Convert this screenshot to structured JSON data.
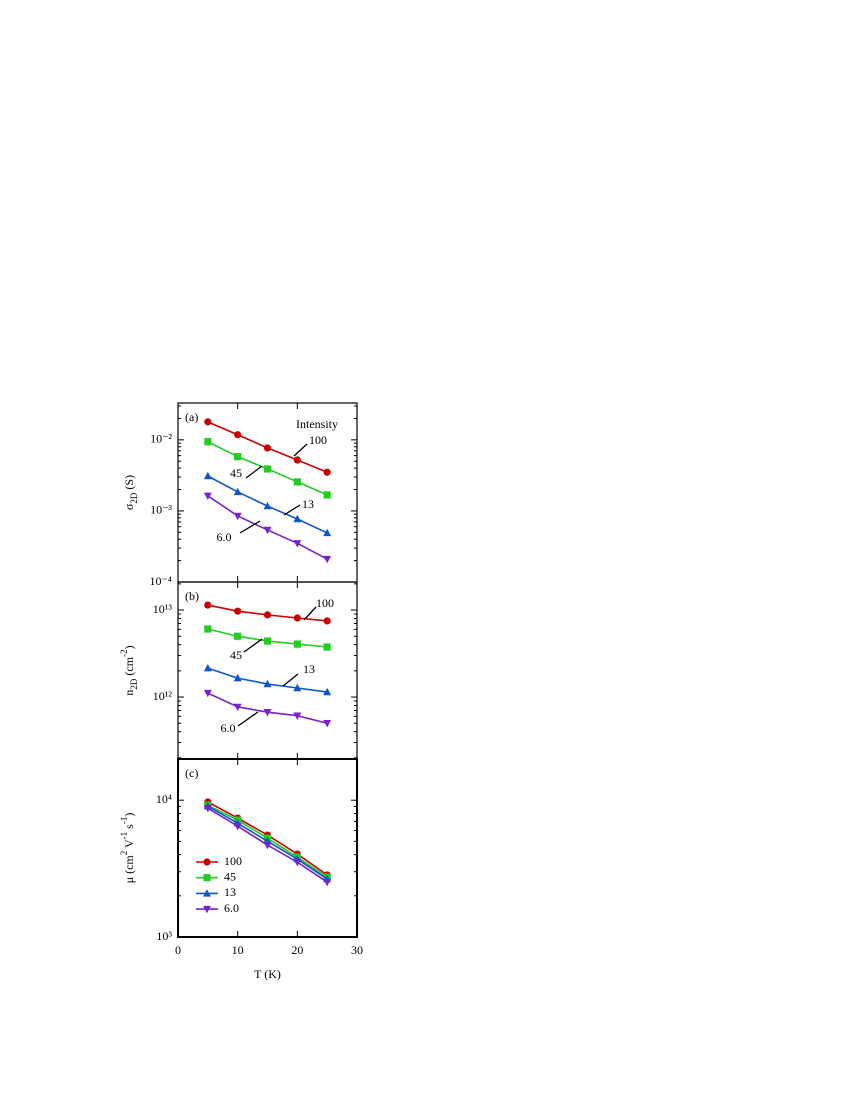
{
  "chart_data": [
    {
      "type": "line",
      "panel_label": "(a)",
      "ylabel": [
        {
          "text": "σ"
        },
        {
          "text": "2D",
          "sub": true
        },
        {
          "text": " (S)"
        }
      ],
      "log_y": true,
      "xlim": [
        0,
        30
      ],
      "xticks": [
        0,
        10,
        20,
        30
      ],
      "xtick_labels": false,
      "ylim": [
        0.0001,
        0.033
      ],
      "yticks": [
        {
          "value": 0.0001,
          "label": "10⁻⁴"
        },
        {
          "value": 0.001,
          "label": "10⁻³"
        },
        {
          "value": 0.01,
          "label": "10⁻²"
        }
      ],
      "annotations": [
        "Intensity"
      ],
      "series_labels": true,
      "x": [
        5,
        10,
        15,
        20,
        25
      ],
      "series": [
        {
          "name": "100",
          "color": "#cc0000",
          "marker": "circle",
          "values": [
            0.0179,
            0.0118,
            0.0077,
            0.0052,
            0.0035
          ]
        },
        {
          "name": "45",
          "color": "#22cc22",
          "marker": "square",
          "values": [
            0.0094,
            0.0058,
            0.0039,
            0.00256,
            0.00168
          ]
        },
        {
          "name": "13",
          "color": "#1155cc",
          "marker": "triangle-up",
          "values": [
            0.0031,
            0.00185,
            0.00117,
            0.00077,
            0.00049
          ]
        },
        {
          "name": "6.0",
          "color": "#7722cc",
          "marker": "triangle-down",
          "values": [
            0.00163,
            0.00085,
            0.00054,
            0.00035,
            0.00021
          ]
        }
      ]
    },
    {
      "type": "line",
      "panel_label": "(b)",
      "ylabel": [
        {
          "text": "n"
        },
        {
          "text": "2D",
          "sub": true
        },
        {
          "text": " (cm"
        },
        {
          "text": "-2",
          "sup": true
        },
        {
          "text": ")"
        }
      ],
      "log_y": true,
      "xlim": [
        0,
        30
      ],
      "xticks": [
        0,
        10,
        20,
        30
      ],
      "xtick_labels": false,
      "ylim": [
        194000000000,
        21000000000000
      ],
      "yticks": [
        {
          "value": 1000000000000,
          "label": "10¹²"
        },
        {
          "value": 10000000000000,
          "label": "10¹³"
        }
      ],
      "series_labels": true,
      "x": [
        5,
        10,
        15,
        20,
        25
      ],
      "series": [
        {
          "name": "100",
          "color": "#cc0000",
          "marker": "circle",
          "values": [
            11400000000000,
            9700000000000,
            8800000000000,
            8100000000000,
            7500000000000
          ]
        },
        {
          "name": "45",
          "color": "#22cc22",
          "marker": "square",
          "values": [
            6050000000000,
            5000000000000,
            4400000000000,
            4060000000000,
            3760000000000
          ]
        },
        {
          "name": "13",
          "color": "#1155cc",
          "marker": "triangle-up",
          "values": [
            2150000000000,
            1650000000000,
            1410000000000,
            1270000000000,
            1140000000000
          ]
        },
        {
          "name": "6.0",
          "color": "#7722cc",
          "marker": "triangle-down",
          "values": [
            1110000000000,
            770000000000,
            670000000000,
            610000000000,
            500000000000
          ]
        }
      ]
    },
    {
      "type": "line",
      "panel_label": "(c)",
      "ylabel": [
        {
          "text": "μ (cm"
        },
        {
          "text": "2",
          "sup": true
        },
        {
          "text": " V"
        },
        {
          "text": "-1",
          "sup": true
        },
        {
          "text": " s"
        },
        {
          "text": "-1",
          "sup": true
        },
        {
          "text": ")"
        }
      ],
      "xlabel": "T (K)",
      "log_y": true,
      "xlim": [
        0,
        30
      ],
      "xticks": [
        0,
        10,
        20,
        30
      ],
      "xtick_labels": true,
      "ylim": [
        1000,
        20000
      ],
      "yticks": [
        {
          "value": 1000,
          "label": "10³"
        },
        {
          "value": 10000,
          "label": "10⁴"
        }
      ],
      "legend": "lower-left",
      "x": [
        5,
        10,
        15,
        20,
        25
      ],
      "series": [
        {
          "name": "100",
          "color": "#cc0000",
          "marker": "circle",
          "values": [
            9700,
            7400,
            5560,
            4040,
            2840
          ]
        },
        {
          "name": "45",
          "color": "#22cc22",
          "marker": "square",
          "values": [
            9190,
            7150,
            5280,
            3840,
            2740
          ]
        },
        {
          "name": "13",
          "color": "#1155cc",
          "marker": "triangle-up",
          "values": [
            9040,
            6790,
            5020,
            3710,
            2650
          ]
        },
        {
          "name": "6.0",
          "color": "#7722cc",
          "marker": "triangle-down",
          "values": [
            8740,
            6460,
            4700,
            3520,
            2520
          ]
        }
      ]
    }
  ]
}
